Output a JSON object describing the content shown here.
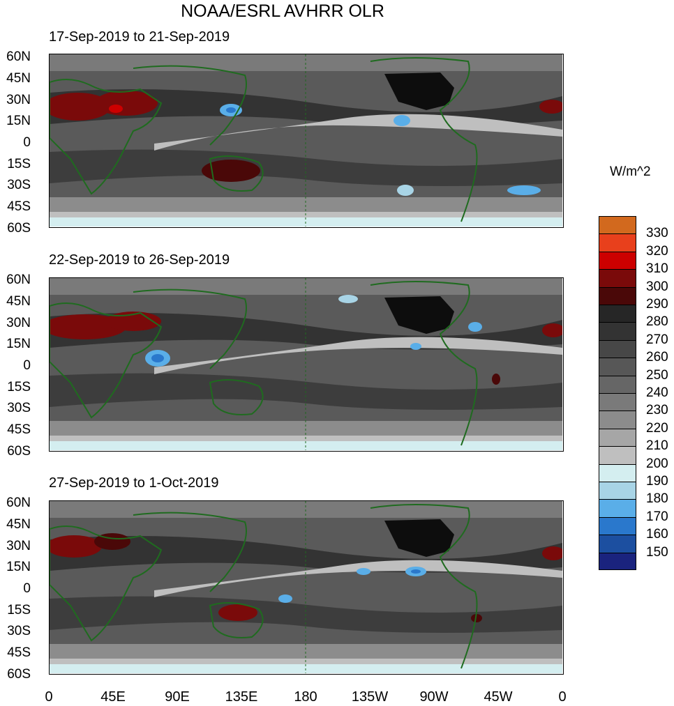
{
  "title": "NOAA/ESRL AVHRR OLR",
  "units_label": "W/m^2",
  "panels": [
    {
      "period_label": "17-Sep-2019 to 21-Sep-2019"
    },
    {
      "period_label": "22-Sep-2019 to 26-Sep-2019"
    },
    {
      "period_label": "27-Sep-2019 to 1-Oct-2019"
    }
  ],
  "lat_ticks": [
    "60N",
    "45N",
    "30N",
    "15N",
    "0",
    "15S",
    "30S",
    "45S",
    "60S"
  ],
  "lon_ticks": [
    "0",
    "45E",
    "90E",
    "135E",
    "180",
    "135W",
    "90W",
    "45W",
    "0"
  ],
  "colorbar": {
    "labels": [
      "330",
      "320",
      "310",
      "300",
      "290",
      "280",
      "270",
      "260",
      "250",
      "240",
      "230",
      "220",
      "210",
      "200",
      "190",
      "180",
      "170",
      "160",
      "150"
    ],
    "colors": [
      "#d2691e",
      "#e8401c",
      "#cc0000",
      "#7a0a0a",
      "#4a0808",
      "#262626",
      "#333333",
      "#474747",
      "#575757",
      "#666666",
      "#7a7a7a",
      "#8c8c8c",
      "#a6a6a6",
      "#bfbfbf",
      "#d4eef0",
      "#a8d4e6",
      "#5aaee8",
      "#2a78cc",
      "#1c4fa0",
      "#1a237e"
    ]
  }
}
